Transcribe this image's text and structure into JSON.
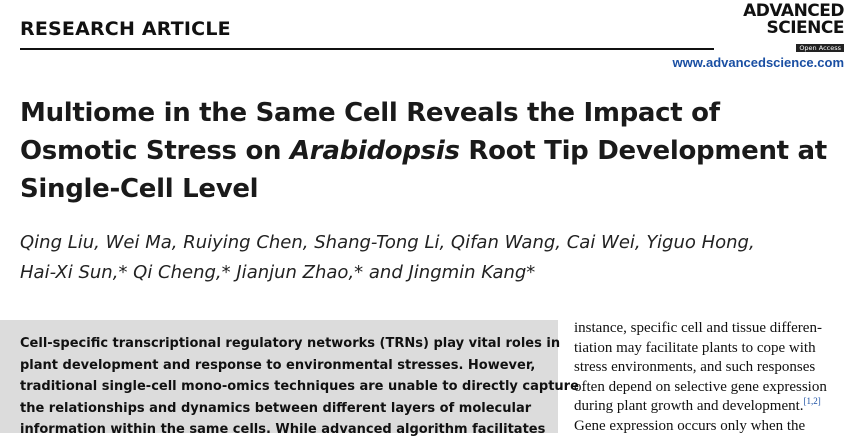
{
  "header": {
    "section_label": "RESEARCH ARTICLE",
    "logo_line1": "ADVANCED",
    "logo_line2": "SCIENCE",
    "logo_badge": "Open Access",
    "url": "www.advancedscience.com"
  },
  "article": {
    "title_part1": "Multiome in the Same Cell Reveals the Impact of Osmotic Stress on ",
    "title_italic": "Arabidopsis",
    "title_part2": " Root Tip Development at Single-Cell Level",
    "authors_line1": "Qing Liu, Wei Ma, Ruiying Chen, Shang-Tong Li, Qifan Wang, Cai Wei, Yiguo Hong,",
    "authors_line2": "Hai-Xi Sun,* Qi Cheng,* Jianjun Zhao,* and Jingmin Kang*"
  },
  "abstract": {
    "lines": [
      "Cell-specific transcriptional regulatory networks (TRNs) play vital roles in",
      "plant development and response to environmental stresses. However,",
      "traditional single-cell mono-omics techniques are unable to directly capture",
      "the relationships and dynamics between different layers of molecular",
      "information within the same cells. While advanced algorithm facilitates"
    ]
  },
  "body": {
    "lines": [
      "instance, specific cell and tissue differen-",
      "tiation may facilitate plants to cope with",
      "stress environments, and such responses",
      "often depend on selective gene expression",
      "during plant growth and development.",
      "Gene expression occurs only when the"
    ],
    "citation": "[1,2]"
  },
  "colors": {
    "accent_link": "#1a4fa3",
    "abstract_bg": "#dcdcdc"
  }
}
